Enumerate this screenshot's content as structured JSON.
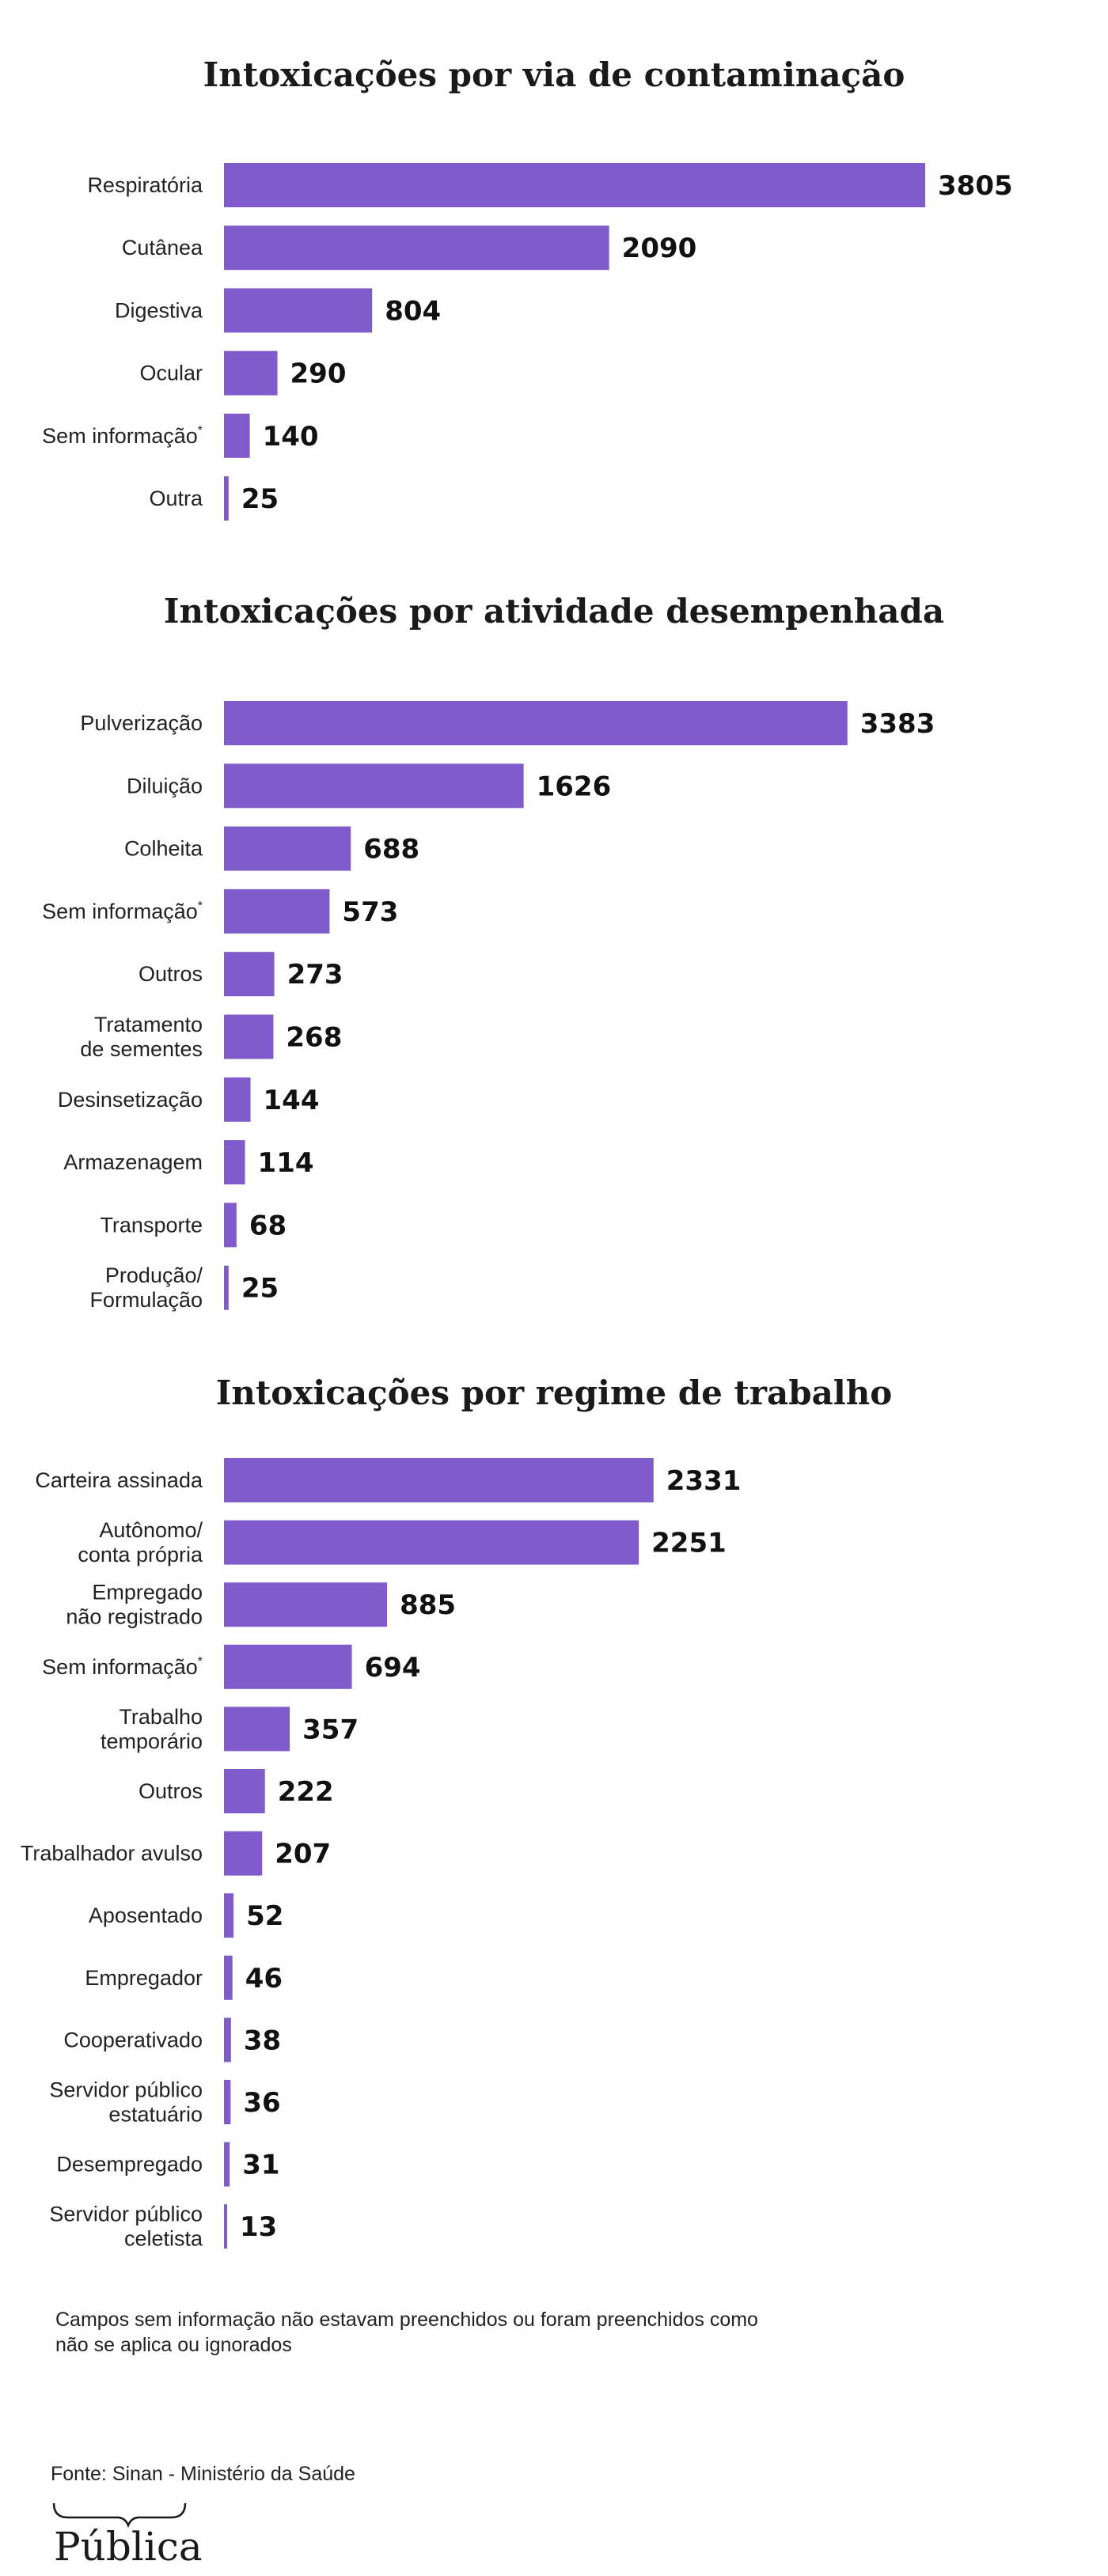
{
  "chart_data": [
    {
      "type": "bar",
      "orientation": "horizontal",
      "title": "Intoxicações por via de contaminação",
      "categories": [
        "Respiratória",
        "Cutânea",
        "Digestiva",
        "Ocular",
        "Sem informação*",
        "Outra"
      ],
      "values": [
        3805,
        2090,
        804,
        290,
        140,
        25
      ],
      "bar_color": "#7f5bcc"
    },
    {
      "type": "bar",
      "orientation": "horizontal",
      "title": "Intoxicações por atividade desempenhada",
      "categories": [
        "Pulverização",
        "Diluição",
        "Colheita",
        "Sem informação*",
        "Outros",
        "Tratamento\nde sementes",
        "Desinsetização",
        "Armazenagem",
        "Transporte",
        "Produção/\nFormulação"
      ],
      "values": [
        3383,
        1626,
        688,
        573,
        273,
        268,
        144,
        114,
        68,
        25
      ],
      "bar_color": "#7f5bcc"
    },
    {
      "type": "bar",
      "orientation": "horizontal",
      "title": "Intoxicações por regime de trabalho",
      "categories": [
        "Carteira assinada",
        "Autônomo/\nconta própria",
        "Empregado\nnão registrado",
        "Sem informação*",
        "Trabalho\ntemporário",
        "Outros",
        "Trabalhador avulso",
        "Aposentado",
        "Empregador",
        "Cooperativado",
        "Servidor público\nestatuário",
        "Desempregado",
        "Servidor público\nceletista"
      ],
      "values": [
        2331,
        2251,
        885,
        694,
        357,
        222,
        207,
        52,
        46,
        38,
        36,
        31,
        13
      ],
      "bar_color": "#7f5bcc"
    }
  ],
  "footnote": "Campos sem informação não estavam preenchidos ou foram preenchidos como não se aplica ou ignorados",
  "source": "Fonte: Sinan - Ministério da Saúde",
  "logo_text": "Pública"
}
